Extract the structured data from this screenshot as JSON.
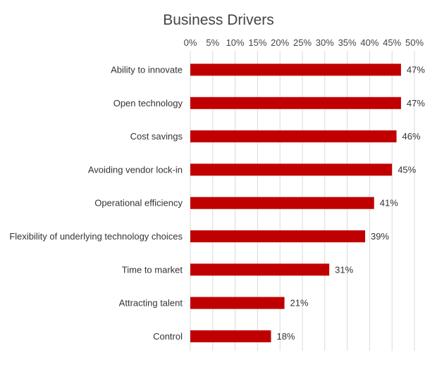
{
  "chart_data": {
    "type": "bar",
    "orientation": "horizontal",
    "title": "Business Drivers",
    "xlabel": "",
    "ylabel": "",
    "xlim": [
      0,
      50
    ],
    "x_ticks": [
      "0%",
      "5%",
      "10%",
      "15%",
      "20%",
      "25%",
      "30%",
      "35%",
      "40%",
      "45%",
      "50%"
    ],
    "x_axis_position": "top",
    "grid": true,
    "legend": "none",
    "bar_color": "#c00000",
    "categories": [
      "Ability to innovate",
      "Open technology",
      "Cost savings",
      "Avoiding vendor lock-in",
      "Operational efficiency",
      "Flexibility of underlying technology choices",
      "Time to market",
      "Attracting talent",
      "Control"
    ],
    "values": [
      47,
      47,
      46,
      45,
      41,
      39,
      31,
      21,
      18
    ],
    "data_labels": [
      "47%",
      "47%",
      "46%",
      "45%",
      "41%",
      "39%",
      "31%",
      "21%",
      "18%"
    ]
  }
}
